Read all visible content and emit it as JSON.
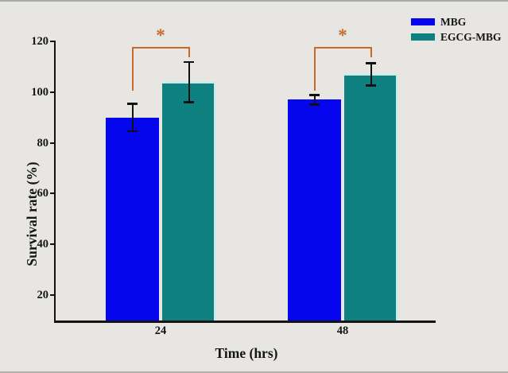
{
  "figure": {
    "background_color": "#e7e6e2",
    "top_edge_color": "#a9adaa",
    "bottom_edge_color": "#b3b1a6",
    "text_color": "#141414",
    "axis_color": "#141414"
  },
  "chart_data": {
    "type": "bar",
    "title": "",
    "xlabel": "Time (hrs)",
    "ylabel": "Survival rate (%)",
    "categories": [
      "24",
      "48"
    ],
    "series": [
      {
        "name": "MBG",
        "color": "#0505ee",
        "edge_color": null,
        "values": [
          90,
          97
        ],
        "errors": [
          5.5,
          2
        ]
      },
      {
        "name": "EGCG-MBG",
        "color": "#0f8080",
        "edge_color": "#c2ecee",
        "values": [
          104,
          107
        ],
        "errors": [
          8,
          4.5
        ]
      }
    ],
    "ylim": [
      10,
      120
    ],
    "yticks": [
      20,
      40,
      60,
      80,
      100,
      120
    ],
    "grid": false,
    "legend_position": "top-right",
    "error_bar_color": "#111111",
    "significance": [
      {
        "category": "24",
        "label": "*"
      },
      {
        "category": "48",
        "label": "*"
      }
    ],
    "significance_color": "#c8692c"
  }
}
